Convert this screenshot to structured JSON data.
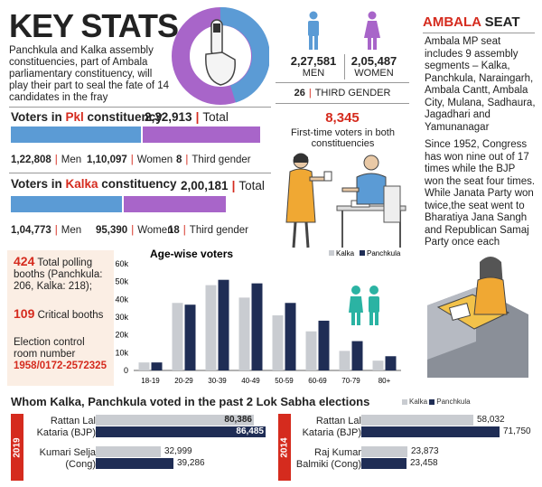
{
  "header": {
    "title": "KEY STATS",
    "intro": "Panchkula and Kalka assembly constituencies, part of Ambala parliamentary constituency, will play their part to seal the fate of 14 candidates in the fray"
  },
  "colors": {
    "men": "#5b9bd5",
    "women": "#a865c9",
    "red": "#d52b1e",
    "navy": "#1f2d55",
    "grey": "#c9ccd1"
  },
  "gender": {
    "men_value": "2,27,581",
    "men_label": "MEN",
    "women_value": "2,05,487",
    "women_label": "WOMEN",
    "third_value": "26",
    "third_label": "THIRD GENDER",
    "first_time_value": "8,345",
    "first_time_label": "First-time voters in both constituencies"
  },
  "pkl": {
    "heading_pre": "Voters in ",
    "heading_name": "Pkl",
    "heading_post": " constituency",
    "total_value": "2,32,913",
    "total_label": "Total",
    "men_value": "1,22,808",
    "men_label": "Men",
    "women_value": "1,10,097",
    "women_label": "Women",
    "third_value": "8",
    "third_label": "Third gender",
    "men": 122808,
    "women": 110097
  },
  "kalka": {
    "heading_pre": "Voters in ",
    "heading_name": "Kalka",
    "heading_post": " constituency",
    "total_value": "2,00,181",
    "total_label": "Total",
    "men_value": "1,04,773",
    "men_label": "Men",
    "women_value": "95,390",
    "women_label": "Women",
    "third_value": "18",
    "third_label": "Third gender",
    "men": 104773,
    "women": 95390
  },
  "ambala": {
    "title_red": "AMBALA",
    "title_black": " SEAT",
    "para1": "Ambala MP seat includes 9 assembly segments – Kalka, Panchkula, Naraingarh, Ambala Cantt, Ambala City, Mulana, Sadhaura, Jagadhari and Yamunanagar",
    "para2": "Since 1952, Congress has won nine out of 17 times while the BJP won the seat four times. While Janata Party won twice,the seat went to Bharatiya Jana Sangh and Republican Samaj Party once each"
  },
  "booths": {
    "total_value": "424",
    "total_label": "Total polling booths (Panchkula: 206, Kalka: 218);",
    "critical_value": "109",
    "critical_label": "Critical booths",
    "control_label": "Election control room number",
    "control_number": "1958/0172-2572325"
  },
  "chart_data": [
    {
      "type": "bar",
      "title": "Age-wise voters",
      "categories": [
        "18-19",
        "20-29",
        "30-39",
        "40-49",
        "50-59",
        "60-69",
        "70-79",
        "80+"
      ],
      "series": [
        {
          "name": "Kalka",
          "values": [
            4500,
            38000,
            48000,
            41000,
            31000,
            22000,
            11000,
            5500
          ]
        },
        {
          "name": "Panchkula",
          "values": [
            4500,
            37000,
            51000,
            49000,
            38000,
            28000,
            16500,
            8000
          ]
        }
      ],
      "ylim": [
        0,
        60000
      ],
      "yticks": [
        "0",
        "10k",
        "20k",
        "30k",
        "40k",
        "50k",
        "60k"
      ]
    },
    {
      "type": "bar",
      "title": "Whom Kalka, Panchkula voted in the past 2 Lok Sabha elections",
      "orientation": "horizontal",
      "legend": [
        "Kalka",
        "Panchkula"
      ],
      "groups": [
        {
          "year": "2019",
          "candidates": [
            {
              "name": "Rattan Lal Kataria (BJP)",
              "kalka": 80386,
              "kalka_label": "80,386",
              "panchkula": 86485,
              "panchkula_label": "86,485"
            },
            {
              "name": "Kumari Selja (Cong)",
              "kalka": 32999,
              "kalka_label": "32,999",
              "panchkula": 39286,
              "panchkula_label": "39,286"
            }
          ]
        },
        {
          "year": "2014",
          "candidates": [
            {
              "name": "Rattan Lal Kataria (BJP)",
              "kalka": 58032,
              "kalka_label": "58,032",
              "panchkula": 71750,
              "panchkula_label": "71,750"
            },
            {
              "name": "Raj Kumar Balmiki (Cong)",
              "kalka": 23873,
              "kalka_label": "23,873",
              "panchkula": 23458,
              "panchkula_label": "23,458"
            }
          ]
        }
      ]
    }
  ]
}
